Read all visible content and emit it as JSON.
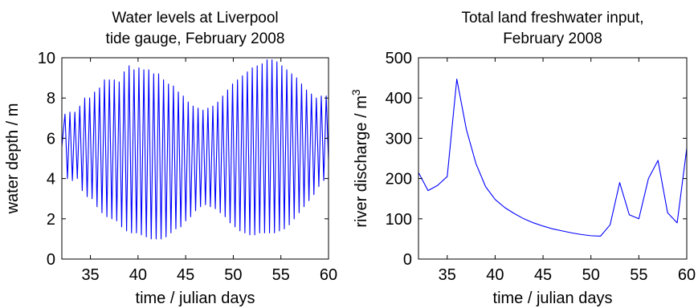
{
  "chart_data": [
    {
      "type": "line",
      "title_lines": [
        "Water levels at Liverpool",
        "tide gauge, February 2008"
      ],
      "xlabel": "time / julian days",
      "ylabel": "water depth / m",
      "xlim": [
        32,
        60
      ],
      "ylim": [
        0,
        10
      ],
      "xticks": [
        35,
        40,
        45,
        50,
        55,
        60
      ],
      "yticks": [
        0,
        2,
        4,
        6,
        8,
        10
      ],
      "grid": false,
      "line_color": "#0000ff",
      "series": [
        {
          "name": "",
          "sampling": "semidiurnal tide (period 0.5175 days) with spring-neap envelope",
          "x": [
            32.0,
            60.0
          ],
          "high_water": [
            7.2,
            7.3,
            7.3,
            7.6,
            8.0,
            8.0,
            8.3,
            8.5,
            8.9,
            8.9,
            8.9,
            8.8,
            9.3,
            9.6,
            9.4,
            9.5,
            9.4,
            9.4,
            9.2,
            9.2,
            8.9,
            8.7,
            8.6,
            8.3,
            8.1,
            7.8,
            7.6,
            7.5,
            7.4,
            7.5,
            7.6,
            7.8,
            8.1,
            8.4,
            8.7,
            8.9,
            9.1,
            9.3,
            9.5,
            9.6,
            9.7,
            9.9,
            9.9,
            9.8,
            9.6,
            9.4,
            9.2,
            9.0,
            8.7,
            8.4,
            8.2,
            8.0,
            8.1,
            8.1
          ],
          "low_water": [
            4.0,
            3.9,
            4.0,
            3.4,
            3.1,
            3.0,
            2.6,
            2.3,
            2.1,
            2.0,
            1.9,
            1.6,
            1.4,
            1.3,
            1.3,
            1.2,
            1.1,
            1.0,
            1.0,
            1.0,
            1.1,
            1.3,
            1.5,
            1.6,
            1.9,
            2.1,
            2.4,
            2.6,
            2.7,
            2.6,
            2.5,
            2.3,
            2.1,
            1.8,
            1.6,
            1.4,
            1.3,
            1.2,
            1.2,
            1.3,
            1.3,
            1.3,
            1.3,
            1.4,
            1.5,
            1.7,
            2.0,
            2.3,
            2.6,
            2.9,
            3.2,
            3.6,
            3.9,
            4.0
          ],
          "end_value": 4.9
        }
      ]
    },
    {
      "type": "line",
      "title_lines": [
        "Total land freshwater input,",
        "February 2008"
      ],
      "xlabel": "time / julian days",
      "ylabel": "river discharge / m",
      "ylabel_superscript": "3",
      "xlim": [
        32,
        60
      ],
      "ylim": [
        0,
        500
      ],
      "xticks": [
        35,
        40,
        45,
        50,
        55,
        60
      ],
      "yticks": [
        0,
        100,
        200,
        300,
        400,
        500
      ],
      "grid": false,
      "line_color": "#0000ff",
      "series": [
        {
          "name": "",
          "x": [
            32,
            33,
            34,
            35,
            36,
            37,
            38,
            39,
            40,
            41,
            42,
            43,
            44,
            45,
            46,
            47,
            48,
            49,
            50,
            51,
            52,
            53,
            54,
            55,
            56,
            57,
            58,
            59,
            60
          ],
          "values": [
            215,
            170,
            183,
            205,
            447,
            322,
            237,
            180,
            148,
            128,
            113,
            100,
            90,
            82,
            75,
            70,
            65,
            61,
            58,
            57,
            85,
            190,
            110,
            100,
            200,
            245,
            115,
            90,
            275
          ]
        }
      ]
    }
  ]
}
